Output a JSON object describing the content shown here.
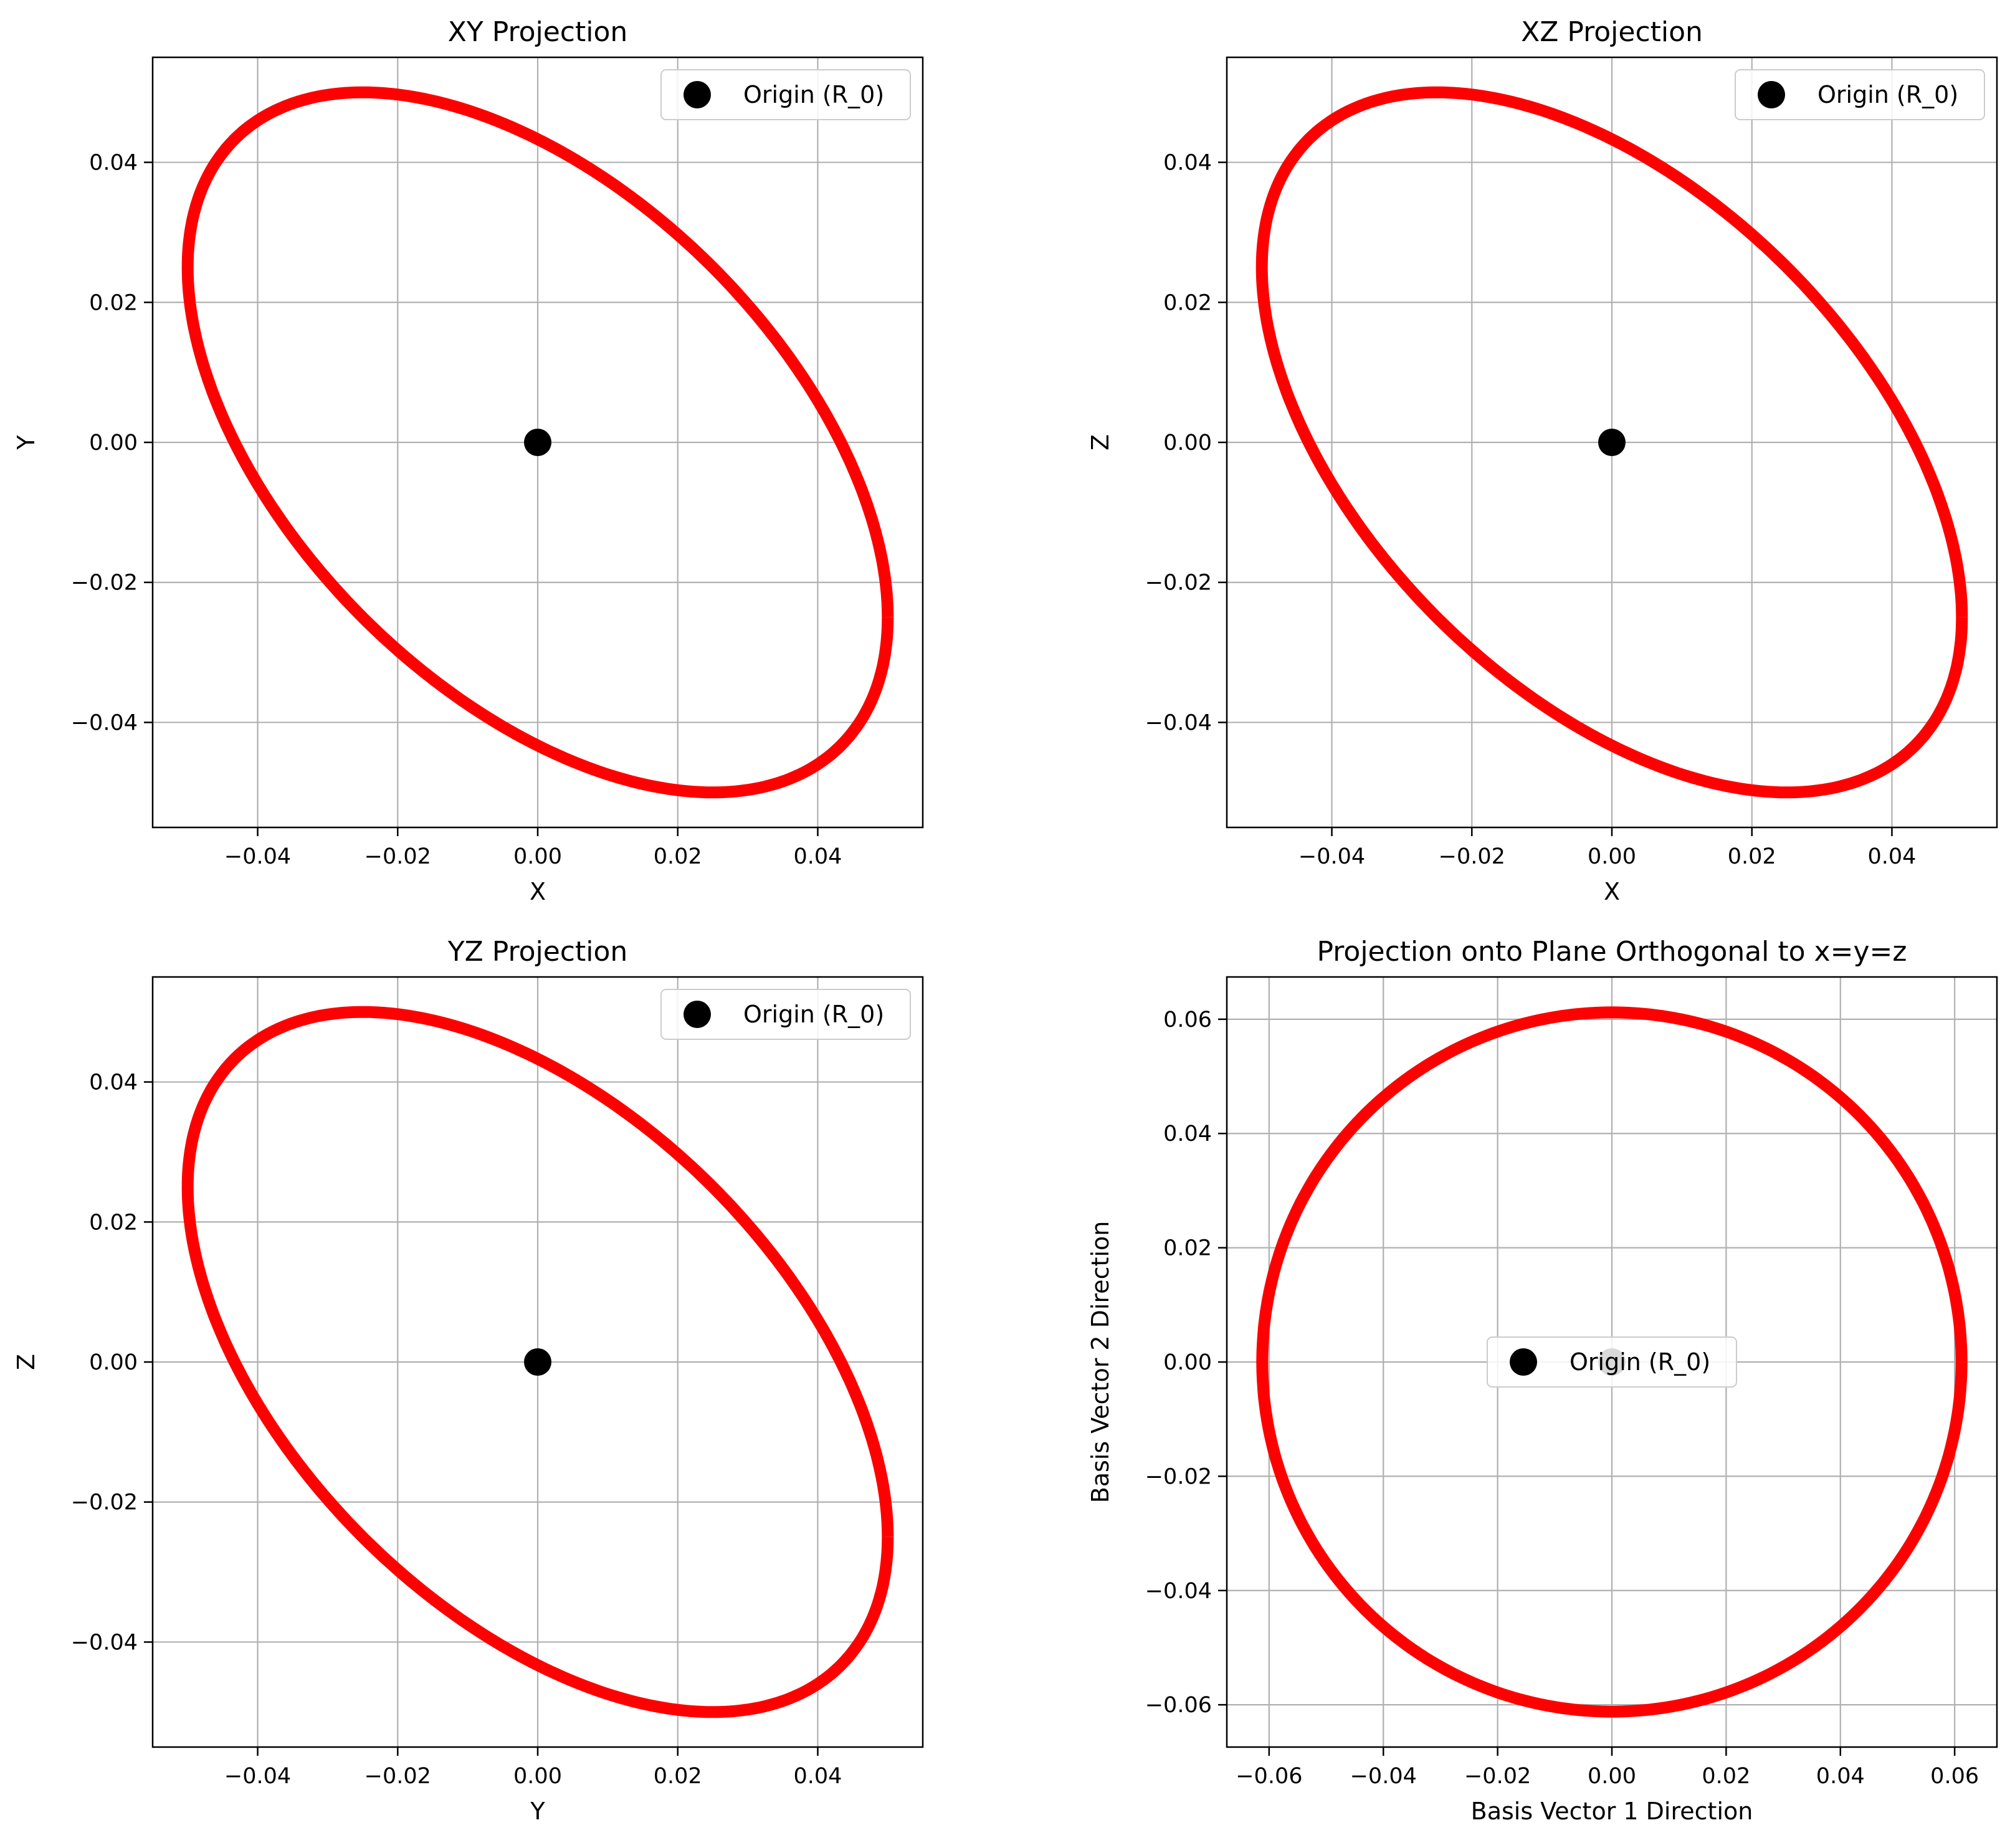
{
  "chart_data": [
    {
      "type": "line",
      "title": "XY Projection",
      "xlabel": "X",
      "ylabel": "Y",
      "xlim": [
        -0.055,
        0.055
      ],
      "ylim": [
        -0.055,
        0.055
      ],
      "xticks": [
        -0.04,
        -0.02,
        0.0,
        0.02,
        0.04
      ],
      "yticks": [
        -0.04,
        -0.02,
        0.0,
        0.02,
        0.04
      ],
      "xtick_labels": [
        "−0.04",
        "−0.02",
        "0.00",
        "0.02",
        "0.04"
      ],
      "ytick_labels": [
        "−0.04",
        "−0.02",
        "0.00",
        "0.02",
        "0.04"
      ],
      "grid": true,
      "legend_location": "upper right",
      "legend": [
        "Origin (R_0)"
      ],
      "curve": {
        "shape": "ellipse",
        "param": "x = 0.05*cos(t), y = 0.05*cos(t + 2pi/3)",
        "color": "#ff0000"
      },
      "origin_point": {
        "x": 0.0,
        "y": 0.0,
        "color": "#000000"
      }
    },
    {
      "type": "line",
      "title": "XZ Projection",
      "xlabel": "X",
      "ylabel": "Z",
      "xlim": [
        -0.055,
        0.055
      ],
      "ylim": [
        -0.055,
        0.055
      ],
      "xticks": [
        -0.04,
        -0.02,
        0.0,
        0.02,
        0.04
      ],
      "yticks": [
        -0.04,
        -0.02,
        0.0,
        0.02,
        0.04
      ],
      "xtick_labels": [
        "−0.04",
        "−0.02",
        "0.00",
        "0.02",
        "0.04"
      ],
      "ytick_labels": [
        "−0.04",
        "−0.02",
        "0.00",
        "0.02",
        "0.04"
      ],
      "grid": true,
      "legend_location": "upper right",
      "legend": [
        "Origin (R_0)"
      ],
      "curve": {
        "shape": "ellipse",
        "param": "x = 0.05*cos(t), z = 0.05*cos(t + 2pi/3)",
        "color": "#ff0000"
      },
      "origin_point": {
        "x": 0.0,
        "y": 0.0,
        "color": "#000000"
      }
    },
    {
      "type": "line",
      "title": "YZ Projection",
      "xlabel": "Y",
      "ylabel": "Z",
      "xlim": [
        -0.055,
        0.055
      ],
      "ylim": [
        -0.055,
        0.055
      ],
      "xticks": [
        -0.04,
        -0.02,
        0.0,
        0.02,
        0.04
      ],
      "yticks": [
        -0.04,
        -0.02,
        0.0,
        0.02,
        0.04
      ],
      "xtick_labels": [
        "−0.04",
        "−0.02",
        "0.00",
        "0.02",
        "0.04"
      ],
      "ytick_labels": [
        "−0.04",
        "−0.02",
        "0.00",
        "0.02",
        "0.04"
      ],
      "grid": true,
      "legend_location": "upper right",
      "legend": [
        "Origin (R_0)"
      ],
      "curve": {
        "shape": "ellipse",
        "param": "y = 0.05*cos(t), z = 0.05*cos(t + 2pi/3)",
        "color": "#ff0000"
      },
      "origin_point": {
        "x": 0.0,
        "y": 0.0,
        "color": "#000000"
      }
    },
    {
      "type": "line",
      "title": "Projection onto Plane Orthogonal to x=y=z",
      "xlabel": "Basis Vector 1 Direction",
      "ylabel": "Basis Vector 2 Direction",
      "xlim": [
        -0.0674,
        0.0674
      ],
      "ylim": [
        -0.0674,
        0.0674
      ],
      "xticks": [
        -0.06,
        -0.04,
        -0.02,
        0.0,
        0.02,
        0.04,
        0.06
      ],
      "yticks": [
        -0.06,
        -0.04,
        -0.02,
        0.0,
        0.02,
        0.04,
        0.06
      ],
      "xtick_labels": [
        "−0.06",
        "−0.04",
        "−0.02",
        "0.00",
        "0.02",
        "0.04",
        "0.06"
      ],
      "ytick_labels": [
        "−0.06",
        "−0.04",
        "−0.02",
        "0.00",
        "0.02",
        "0.04",
        "0.06"
      ],
      "grid": true,
      "legend_location": "center",
      "legend": [
        "Origin (R_0)"
      ],
      "curve": {
        "shape": "circle",
        "radius": 0.0612,
        "color": "#ff0000"
      },
      "origin_point": {
        "x": 0.0,
        "y": 0.0,
        "color": "#000000"
      }
    }
  ]
}
